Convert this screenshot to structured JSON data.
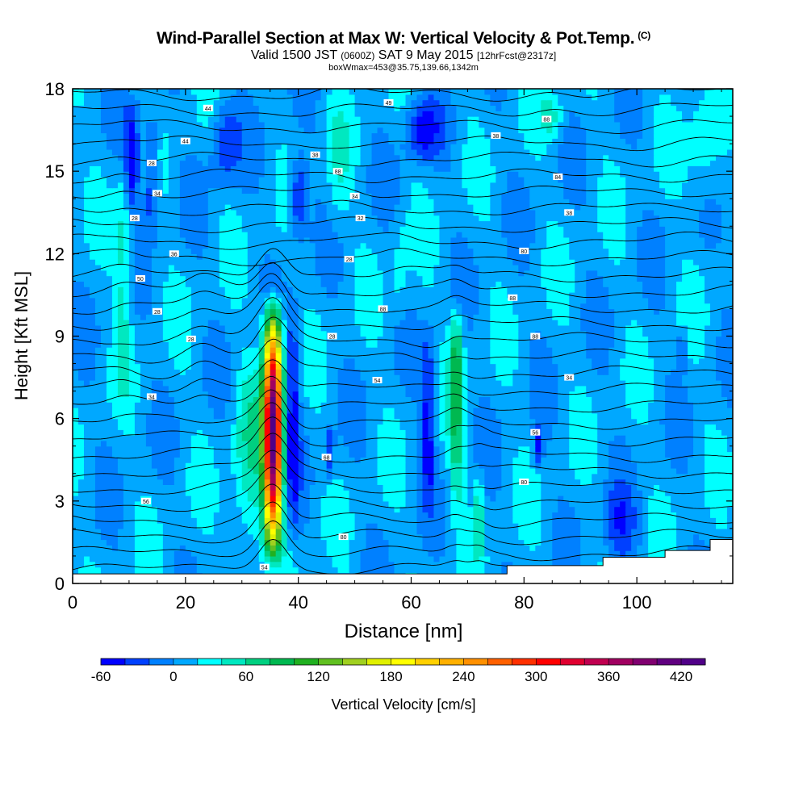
{
  "header": {
    "title": "Wind-Parallel Section at Max W: Vertical Velocity & Pot.Temp.",
    "title_mark": "(C)",
    "subtitle_main_a": "Valid 1500 JST",
    "subtitle_small_a": "(0600Z)",
    "subtitle_main_b": "SAT 9 May 2015",
    "subtitle_small_b": "[12hrFcst@2317z]",
    "subtitle2": "boxWmax=453@35.75,139.66,1342m"
  },
  "chart_data": {
    "type": "heatmap",
    "xlabel": "Distance [nm]",
    "ylabel": "Height [Kft MSL]",
    "xlim": [
      0,
      117
    ],
    "ylim": [
      0,
      18
    ],
    "x_ticks": [
      0,
      20,
      40,
      60,
      80,
      100
    ],
    "y_ticks": [
      0,
      3,
      6,
      9,
      12,
      15,
      18
    ],
    "colorbar": {
      "label": "Vertical Velocity [cm/s]",
      "min": -60,
      "max": 440,
      "step": 20,
      "tick_labels": [
        -60,
        0,
        60,
        120,
        180,
        240,
        300,
        360,
        420
      ],
      "colors": [
        "#0000ff",
        "#0040ff",
        "#0080ff",
        "#00a8ff",
        "#00ffff",
        "#00e8c0",
        "#00d080",
        "#00b850",
        "#20b020",
        "#60c020",
        "#a0d020",
        "#e0f000",
        "#ffff00",
        "#ffd000",
        "#ffb000",
        "#ff9000",
        "#ff6000",
        "#ff3000",
        "#ff0000",
        "#e00030",
        "#c00050",
        "#a00060",
        "#800070",
        "#600080",
        "#500088"
      ]
    },
    "background_w": 10,
    "updrafts": [
      {
        "x": 35.5,
        "sx": 1.6,
        "y0": 0.5,
        "y1": 10.8,
        "peak": 420,
        "y_peak": 5.5
      },
      {
        "x": 68,
        "sx": 1.2,
        "y0": 1.5,
        "y1": 10.5,
        "peak": 90,
        "y_peak": 8
      },
      {
        "x": 72,
        "sx": 0.8,
        "y0": 0.5,
        "y1": 4.5,
        "peak": 60,
        "y_peak": 2.5
      },
      {
        "x": 31,
        "sx": 2.5,
        "y0": 0,
        "y1": 9,
        "peak": 55,
        "y_peak": 4
      },
      {
        "x": 9,
        "sx": 1.5,
        "y0": 6,
        "y1": 16,
        "peak": 50,
        "y_peak": 12
      },
      {
        "x": 112,
        "sx": 3,
        "y0": 13,
        "y1": 18,
        "peak": 40,
        "y_peak": 16
      },
      {
        "x": 85,
        "sx": 2,
        "y0": 16,
        "y1": 18,
        "peak": 45,
        "y_peak": 17
      },
      {
        "x": 47,
        "sx": 2,
        "y0": 12,
        "y1": 18,
        "peak": 35,
        "y_peak": 15
      },
      {
        "x": 58,
        "sx": 1.5,
        "y0": 9,
        "y1": 14,
        "peak": 30,
        "y_peak": 11
      }
    ],
    "downdrafts": [
      {
        "x": 39,
        "sx": 1.2,
        "y0": 1,
        "y1": 11,
        "peak": -55,
        "y_peak": 7
      },
      {
        "x": 10.5,
        "sx": 1.4,
        "y0": 13,
        "y1": 18,
        "peak": -60,
        "y_peak": 16
      },
      {
        "x": 14,
        "sx": 1.2,
        "y0": 12,
        "y1": 18,
        "peak": -45,
        "y_peak": 16
      },
      {
        "x": 40,
        "sx": 1.5,
        "y0": 12,
        "y1": 16,
        "peak": -50,
        "y_peak": 14
      },
      {
        "x": 63,
        "sx": 1.2,
        "y0": 2,
        "y1": 10,
        "peak": -50,
        "y_peak": 5
      },
      {
        "x": 62,
        "sx": 3,
        "y0": 15,
        "y1": 18,
        "peak": -45,
        "y_peak": 17
      },
      {
        "x": 45.5,
        "sx": 0.8,
        "y0": 3.5,
        "y1": 6,
        "peak": -45,
        "y_peak": 5
      },
      {
        "x": 82.5,
        "sx": 0.8,
        "y0": 4,
        "y1": 6,
        "peak": -45,
        "y_peak": 5
      },
      {
        "x": 108,
        "sx": 0.6,
        "y0": 7.5,
        "y1": 9.5,
        "peak": -45,
        "y_peak": 8.5
      },
      {
        "x": 27,
        "sx": 2.5,
        "y0": 14,
        "y1": 18,
        "peak": -35,
        "y_peak": 16
      },
      {
        "x": 97,
        "sx": 3,
        "y0": 0,
        "y1": 4,
        "peak": -30,
        "y_peak": 2
      }
    ],
    "terrain": {
      "x": [
        0,
        77,
        77,
        94,
        94,
        105,
        105,
        113,
        113,
        117
      ],
      "y": [
        0.35,
        0.35,
        0.65,
        0.65,
        0.95,
        0.95,
        1.2,
        1.2,
        1.6,
        1.6
      ]
    },
    "isentropes": {
      "count": 30,
      "y_base_min": 0.5,
      "y_base_max": 17.8
    },
    "contour_labels": [
      {
        "x": 24,
        "y": 17.3,
        "text": "44"
      },
      {
        "x": 20,
        "y": 16.1,
        "text": "44"
      },
      {
        "x": 14,
        "y": 15.3,
        "text": "28"
      },
      {
        "x": 15,
        "y": 14.2,
        "text": "34"
      },
      {
        "x": 11,
        "y": 13.3,
        "text": "28"
      },
      {
        "x": 18,
        "y": 12.0,
        "text": "36"
      },
      {
        "x": 12,
        "y": 11.1,
        "text": "50"
      },
      {
        "x": 15,
        "y": 9.9,
        "text": "28"
      },
      {
        "x": 21,
        "y": 8.9,
        "text": "28"
      },
      {
        "x": 14,
        "y": 6.8,
        "text": "34"
      },
      {
        "x": 13,
        "y": 3.0,
        "text": "56"
      },
      {
        "x": 43,
        "y": 15.6,
        "text": "38"
      },
      {
        "x": 47,
        "y": 15.0,
        "text": "88"
      },
      {
        "x": 50,
        "y": 14.1,
        "text": "34"
      },
      {
        "x": 51,
        "y": 13.3,
        "text": "32"
      },
      {
        "x": 49,
        "y": 11.8,
        "text": "28"
      },
      {
        "x": 55,
        "y": 10.0,
        "text": "88"
      },
      {
        "x": 46,
        "y": 9.0,
        "text": "28"
      },
      {
        "x": 54,
        "y": 7.4,
        "text": "54"
      },
      {
        "x": 45,
        "y": 4.6,
        "text": "68"
      },
      {
        "x": 48,
        "y": 1.7,
        "text": "80"
      },
      {
        "x": 34,
        "y": 0.6,
        "text": "54"
      },
      {
        "x": 56,
        "y": 17.5,
        "text": "49"
      },
      {
        "x": 75,
        "y": 16.3,
        "text": "38"
      },
      {
        "x": 84,
        "y": 16.9,
        "text": "88"
      },
      {
        "x": 86,
        "y": 14.8,
        "text": "84"
      },
      {
        "x": 88,
        "y": 13.5,
        "text": "38"
      },
      {
        "x": 80,
        "y": 12.1,
        "text": "80"
      },
      {
        "x": 78,
        "y": 10.4,
        "text": "88"
      },
      {
        "x": 82,
        "y": 9.0,
        "text": "88"
      },
      {
        "x": 88,
        "y": 7.5,
        "text": "34"
      },
      {
        "x": 82,
        "y": 5.5,
        "text": "56"
      },
      {
        "x": 80,
        "y": 3.7,
        "text": "80"
      }
    ]
  }
}
